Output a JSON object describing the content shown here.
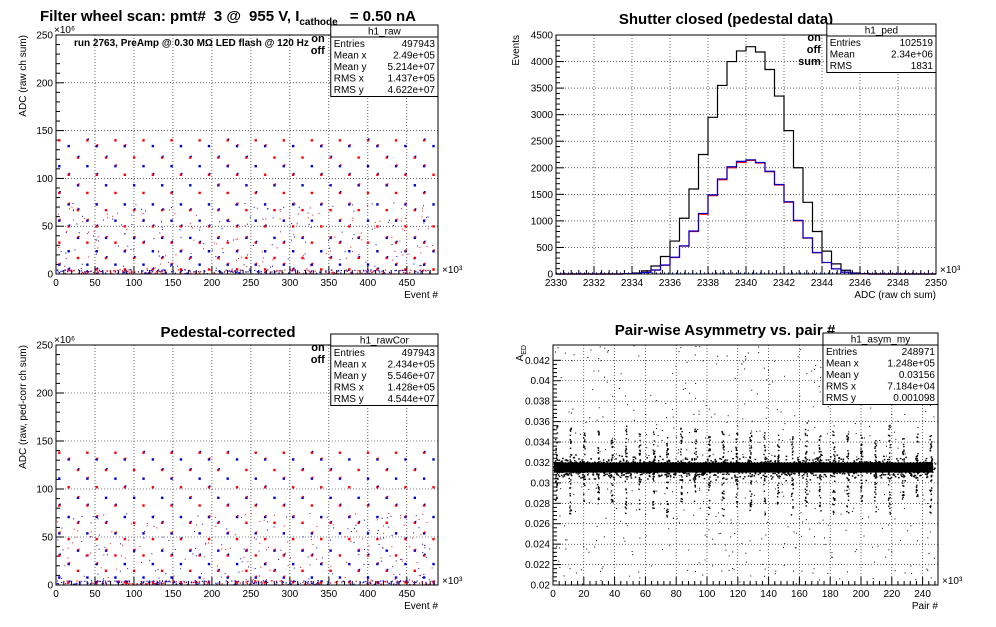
{
  "colors": {
    "on": "#ff0000",
    "off": "#0000cc",
    "sum": "#000000",
    "background": "#ffffff"
  },
  "legend": {
    "on": "on",
    "off": "off",
    "sum": "sum"
  },
  "chart_data": [
    {
      "id": "raw",
      "type": "scatter",
      "title_parts": {
        "a": "Filter wheel scan: pmt#",
        "b": "3 @",
        "c": "955 V, I",
        "sub": "cathode",
        "d": "= 0.50 nA"
      },
      "annotation": "run 2763, PreAmp @ 0.30 MΩ LED flash @  120 Hz",
      "xlabel": "Event #",
      "ylabel": "ADC (raw ch sum)",
      "x_multiplier": "×10³",
      "y_multiplier": "×10⁶",
      "xlim": [
        0,
        490
      ],
      "ylim": [
        0,
        250
      ],
      "xticks": [
        0,
        50,
        100,
        150,
        200,
        250,
        300,
        350,
        400,
        450
      ],
      "yticks": [
        0,
        50,
        100,
        150,
        200,
        250
      ],
      "grid": true,
      "legend_position": "top-right",
      "stats": {
        "name": "h1_raw",
        "rows": [
          {
            "label": "Entries",
            "value": "497943"
          },
          {
            "label": "Mean x",
            "value": "2.49e+05"
          },
          {
            "label": "Mean y",
            "value": "5.214e+07"
          },
          {
            "label": "RMS x",
            "value": "1.437e+05"
          },
          {
            "label": "RMS y",
            "value": "4.622e+07"
          }
        ]
      },
      "levels": [
        140,
        134,
        122,
        113,
        104,
        93,
        85,
        73,
        67,
        56,
        50,
        38,
        33,
        24,
        17,
        10,
        5
      ],
      "period": 36,
      "x_start": 4,
      "series": [
        {
          "name": "on"
        },
        {
          "name": "off"
        }
      ]
    },
    {
      "id": "ped",
      "type": "line",
      "title": "Shutter closed (pedestal data)",
      "xlabel": "ADC (raw ch sum)",
      "ylabel": "Events",
      "x_multiplier": "×10³",
      "xlim": [
        2330,
        2350
      ],
      "ylim": [
        0,
        4500
      ],
      "xticks": [
        2330,
        2332,
        2334,
        2336,
        2338,
        2340,
        2342,
        2344,
        2346,
        2348,
        2350
      ],
      "yticks": [
        0,
        500,
        1000,
        1500,
        2000,
        2500,
        3000,
        3500,
        4000,
        4500
      ],
      "grid": true,
      "legend_position": "top-right",
      "stats": {
        "name": "h1_ped",
        "rows": [
          {
            "label": "Entries",
            "value": "102519"
          },
          {
            "label": "Mean",
            "value": "2.34e+06"
          },
          {
            "label": "RMS",
            "value": "1831"
          }
        ]
      },
      "bins_x": [
        2333.0,
        2333.5,
        2334.0,
        2334.5,
        2335.0,
        2335.5,
        2336.0,
        2336.5,
        2337.0,
        2337.5,
        2338.0,
        2338.5,
        2339.0,
        2339.5,
        2340.0,
        2340.5,
        2341.0,
        2341.5,
        2342.0,
        2342.5,
        2343.0,
        2343.5,
        2344.0,
        2344.5,
        2345.0,
        2345.5,
        2346.0
      ],
      "series": [
        {
          "name": "sum",
          "values": [
            0,
            5,
            20,
            60,
            150,
            330,
            620,
            1050,
            1600,
            2250,
            2950,
            3550,
            4000,
            4200,
            4280,
            4180,
            3850,
            3350,
            2700,
            2000,
            1350,
            800,
            430,
            190,
            70,
            20,
            5
          ]
        },
        {
          "name": "on",
          "values": [
            0,
            2,
            10,
            30,
            75,
            165,
            310,
            525,
            800,
            1125,
            1475,
            1775,
            2000,
            2100,
            2140,
            2090,
            1925,
            1675,
            1350,
            1000,
            675,
            400,
            215,
            95,
            35,
            10,
            2
          ]
        },
        {
          "name": "off",
          "values": [
            0,
            2,
            10,
            30,
            75,
            170,
            315,
            530,
            810,
            1140,
            1490,
            1790,
            2020,
            2120,
            2150,
            2100,
            1935,
            1685,
            1360,
            1010,
            680,
            405,
            218,
            97,
            36,
            10,
            2
          ]
        }
      ]
    },
    {
      "id": "rawCor",
      "type": "scatter",
      "title": "Pedestal-corrected",
      "xlabel": "Event #",
      "ylabel": "ADC (raw, ped-corr ch sum)",
      "x_multiplier": "×10³",
      "y_multiplier": "×10⁶",
      "xlim": [
        0,
        490
      ],
      "ylim": [
        0,
        250
      ],
      "xticks": [
        0,
        50,
        100,
        150,
        200,
        250,
        300,
        350,
        400,
        450
      ],
      "yticks": [
        0,
        50,
        100,
        150,
        200,
        250
      ],
      "grid": true,
      "legend_position": "top-right",
      "stats": {
        "name": "h1_rawCor",
        "rows": [
          {
            "label": "Entries",
            "value": "497943"
          },
          {
            "label": "Mean x",
            "value": "2.434e+05"
          },
          {
            "label": "Mean y",
            "value": "5.546e+07"
          },
          {
            "label": "RMS x",
            "value": "1.428e+05"
          },
          {
            "label": "RMS y",
            "value": "4.544e+07"
          }
        ]
      },
      "levels": [
        138,
        131,
        120,
        111,
        102,
        91,
        83,
        71,
        65,
        54,
        48,
        36,
        31,
        22,
        15,
        8,
        3
      ],
      "period": 36,
      "x_start": 4,
      "series": [
        {
          "name": "on"
        },
        {
          "name": "off"
        }
      ]
    },
    {
      "id": "asym",
      "type": "scatter",
      "title": "Pair-wise Asymmetry vs. pair #",
      "xlabel": "Pair #",
      "ylabel": "A",
      "ylabel_sub": "ED",
      "x_multiplier": "×10³",
      "xlim": [
        0,
        250
      ],
      "ylim": [
        0.02,
        0.0435
      ],
      "xticks": [
        0,
        20,
        40,
        60,
        80,
        100,
        120,
        140,
        160,
        180,
        200,
        220,
        240
      ],
      "yticks": [
        0.02,
        0.022,
        0.024,
        0.026,
        0.028,
        0.03,
        0.032,
        0.034,
        0.036,
        0.038,
        0.04,
        0.042
      ],
      "ytick_labels": [
        "0.02",
        "0.022",
        "0.024",
        "0.026",
        "0.028",
        "0.03",
        "0.032",
        "0.034",
        "0.036",
        "0.038",
        "0.04",
        "0.042"
      ],
      "grid": true,
      "stats": {
        "name": "h1_asym_my",
        "rows": [
          {
            "label": "Entries",
            "value": "248971"
          },
          {
            "label": "Mean x",
            "value": "1.248e+05"
          },
          {
            "label": "Mean y",
            "value": "0.03156"
          },
          {
            "label": "RMS x",
            "value": "7.184e+04"
          },
          {
            "label": "RMS y",
            "value": "0.001098"
          }
        ]
      },
      "band_center": 0.0315,
      "band_halfwidth": 0.0009,
      "spike_period": 9,
      "spike_start": 2
    }
  ]
}
